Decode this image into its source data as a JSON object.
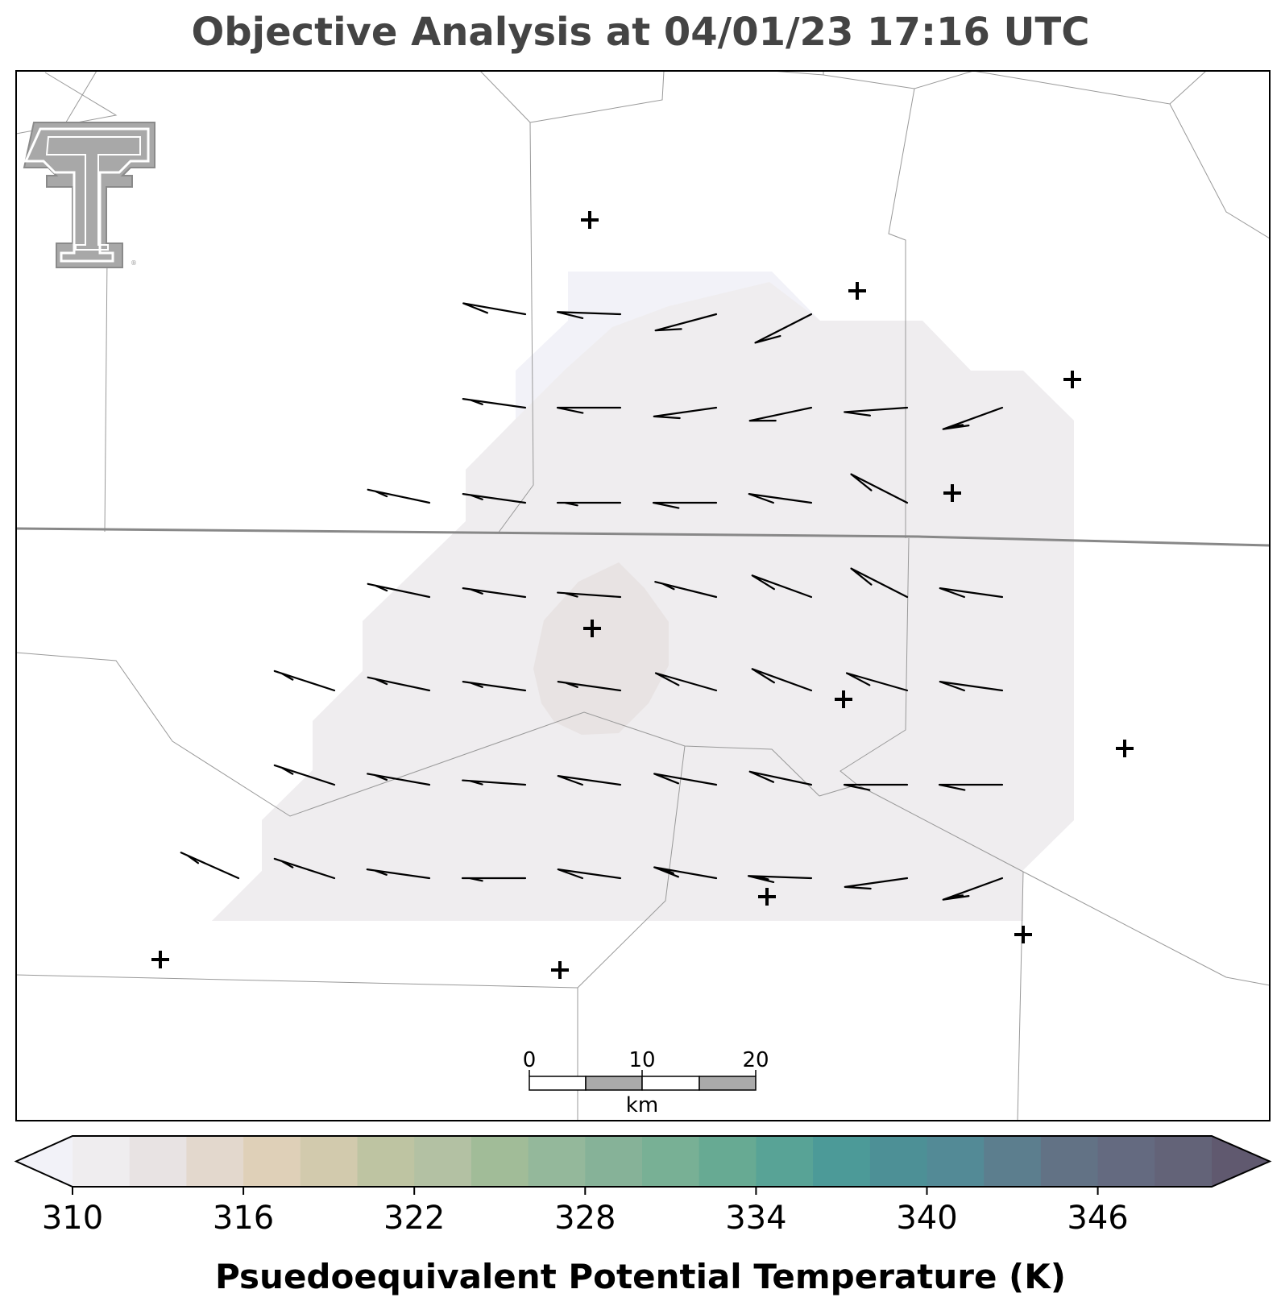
{
  "title": "Objective Analysis at 04/01/23 17:16 UTC",
  "colorbar": {
    "label": "Psuedoequivalent Potential Temperature (K)",
    "ticks": [
      310,
      316,
      322,
      328,
      334,
      340,
      346
    ],
    "min": 310,
    "max": 350,
    "step": 2,
    "extend": "both",
    "colors": [
      "#f2f2f8",
      "#efedef",
      "#e8e3e3",
      "#e3d8cd",
      "#dfd0b8",
      "#d2caad",
      "#bec4a2",
      "#b3c1a3",
      "#a1bc98",
      "#94b89b",
      "#86b298",
      "#78b095",
      "#67aa93",
      "#58a396",
      "#4c9a98",
      "#4d9096",
      "#538a96",
      "#5c7e8e",
      "#627285",
      "#646a80",
      "#636378",
      "#60596f"
    ]
  },
  "scale_bar": {
    "ticks": [
      "0",
      "10",
      "20"
    ],
    "unit": "km"
  },
  "logo": {
    "icon": "texas-tech-double-t-logo"
  },
  "colors": {
    "contour_main": "#efedef",
    "contour_outer": "#f2f2f8",
    "contour_center": "#e8e3e3",
    "border": "#888888",
    "county": "#999999",
    "barb": "#000000",
    "title": "#444444"
  }
}
